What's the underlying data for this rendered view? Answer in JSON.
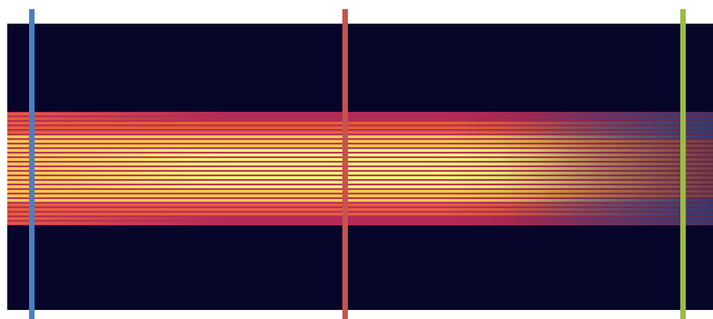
{
  "image": {
    "background_color": "#07052a",
    "band": {
      "line_count": 25,
      "colors": {
        "core": "#f3f57a",
        "hot": "#f7c64f",
        "mid": "#e75d3b",
        "edge": "#b52b57",
        "cool_edge": "#4a5bb0"
      }
    },
    "markers": [
      {
        "name": "blue-marker",
        "color": "#4b7fc3"
      },
      {
        "name": "red-marker",
        "color": "#c9524c"
      },
      {
        "name": "green-marker",
        "color": "#9bbb47"
      }
    ]
  }
}
